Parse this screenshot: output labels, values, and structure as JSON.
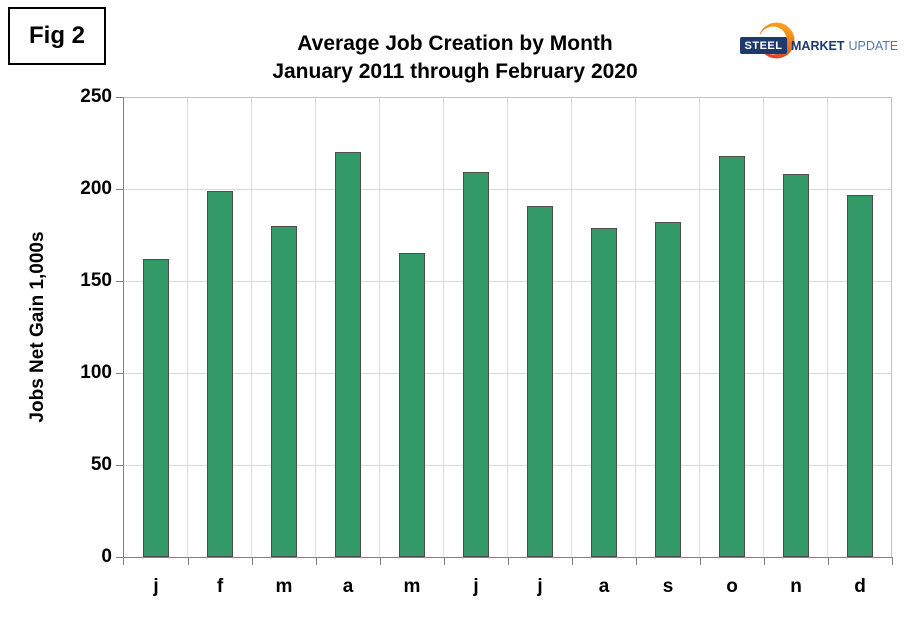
{
  "fig_label": "Fig 2",
  "logo": {
    "steel": "STEEL",
    "market": "MARKET",
    "update": "UPDATE",
    "navy": "#1e3a6d",
    "light_blue": "#5577a8",
    "orange": "#f9a01b",
    "red": "#dc3a22"
  },
  "chart_data": {
    "type": "bar",
    "title": "Average Job Creation by Month",
    "subtitle": "January 2011 through February 2020",
    "ylabel": "Jobs Net Gain 1,000s",
    "xlabel": "",
    "categories": [
      "j",
      "f",
      "m",
      "a",
      "m",
      "j",
      "j",
      "a",
      "s",
      "o",
      "n",
      "d"
    ],
    "values": [
      162,
      199,
      180,
      220,
      165,
      209,
      191,
      179,
      182,
      218,
      208,
      197
    ],
    "ylim": [
      0,
      250
    ],
    "ytick_step": 50,
    "grid": "on",
    "legend": "none",
    "bar_color": "#339966",
    "bar_border_color": "#4d4d4d",
    "gridline_color": "#d9d9d9",
    "axis_color": "#808080"
  }
}
